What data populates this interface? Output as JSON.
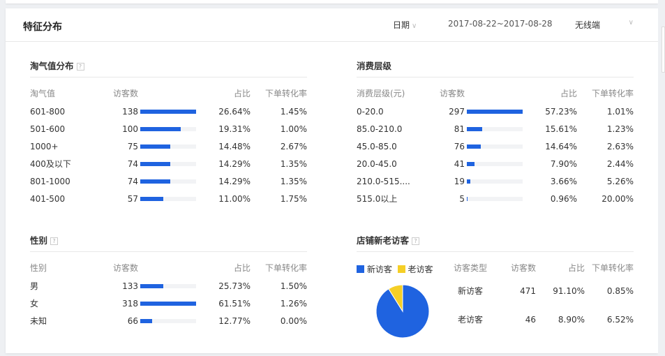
{
  "header": {
    "title": "特征分布",
    "date_label": "日期",
    "date_range": "2017-08-22~2017-08-28",
    "device": "无线端"
  },
  "colors": {
    "bar": "#1f63e0",
    "new": "#1f63e0",
    "old": "#f5cf26"
  },
  "taoqi": {
    "title": "淘气值分布",
    "help": "?",
    "headers": [
      "淘气值",
      "访客数",
      "占比",
      "下单转化率"
    ],
    "rows": [
      [
        "601-800",
        138,
        "26.64%",
        "1.45%"
      ],
      [
        "501-600",
        100,
        "19.31%",
        "1.00%"
      ],
      [
        "1000+",
        75,
        "14.48%",
        "2.67%"
      ],
      [
        "400及以下",
        74,
        "14.29%",
        "1.35%"
      ],
      [
        "801-1000",
        74,
        "14.29%",
        "1.35%"
      ],
      [
        "401-500",
        57,
        "11.00%",
        "1.75%"
      ]
    ]
  },
  "consume": {
    "title": "消费层级",
    "help": "?",
    "headers": [
      "消费层级(元)",
      "访客数",
      "占比",
      "下单转化率"
    ],
    "rows": [
      [
        "0-20.0",
        297,
        "57.23%",
        "1.01%"
      ],
      [
        "85.0-210.0",
        81,
        "15.61%",
        "1.23%"
      ],
      [
        "45.0-85.0",
        76,
        "14.64%",
        "2.63%"
      ],
      [
        "20.0-45.0",
        41,
        "7.90%",
        "2.44%"
      ],
      [
        "210.0-515....",
        19,
        "3.66%",
        "5.26%"
      ],
      [
        "515.0以上",
        5,
        "0.96%",
        "20.00%"
      ]
    ]
  },
  "gender": {
    "title": "性别",
    "help": "?",
    "headers": [
      "性别",
      "访客数",
      "占比",
      "下单转化率"
    ],
    "rows": [
      [
        "男",
        133,
        "25.73%",
        "1.50%"
      ],
      [
        "女",
        318,
        "61.51%",
        "1.26%"
      ],
      [
        "未知",
        66,
        "12.77%",
        "0.00%"
      ]
    ]
  },
  "visitors": {
    "title": "店铺新老访客",
    "help": "?",
    "legend": [
      "新访客",
      "老访客"
    ],
    "headers": [
      "访客类型",
      "访客数",
      "占比",
      "下单转化率"
    ],
    "rows": [
      [
        "新访客",
        471,
        "91.10%",
        "0.85%"
      ],
      [
        "老访客",
        46,
        "8.90%",
        "6.52%"
      ]
    ],
    "pie": [
      91.1,
      8.9
    ]
  }
}
